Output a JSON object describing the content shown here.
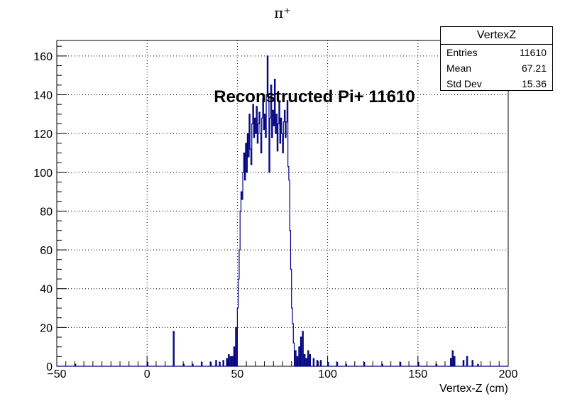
{
  "chart_data": {
    "type": "histogram",
    "title": "π⁺",
    "annotation": "Reconstructed Pi+ 11610",
    "xlabel": "Vertex-Z (cm)",
    "ylabel": "",
    "xlim": [
      -50,
      200
    ],
    "ylim": [
      0,
      168
    ],
    "x_ticks": [
      -50,
      0,
      50,
      100,
      150,
      200
    ],
    "y_ticks": [
      0,
      20,
      40,
      60,
      80,
      100,
      120,
      140,
      160
    ],
    "grid": true,
    "bin_width": 0.5,
    "line_color": "#000080",
    "stats": {
      "name": "VertexZ",
      "rows": [
        {
          "label": "Entries",
          "value": "11610"
        },
        {
          "label": "Mean",
          "value": "67.21"
        },
        {
          "label": "Std Dev",
          "value": "15.36"
        }
      ]
    },
    "bins": [
      [
        -40,
        1
      ],
      [
        0,
        2
      ],
      [
        14.5,
        18
      ],
      [
        20,
        1
      ],
      [
        25,
        1
      ],
      [
        30,
        2
      ],
      [
        35,
        2
      ],
      [
        38,
        3
      ],
      [
        40,
        2
      ],
      [
        42,
        3
      ],
      [
        44,
        4
      ],
      [
        45,
        6
      ],
      [
        46,
        5
      ],
      [
        47,
        5
      ],
      [
        48,
        10
      ],
      [
        49,
        20
      ],
      [
        50,
        30
      ],
      [
        50.5,
        45
      ],
      [
        51,
        60
      ],
      [
        51.5,
        80
      ],
      [
        52,
        90
      ],
      [
        52.5,
        86
      ],
      [
        53,
        100
      ],
      [
        53.5,
        110
      ],
      [
        54,
        96
      ],
      [
        54.5,
        115
      ],
      [
        55,
        100
      ],
      [
        55.5,
        120
      ],
      [
        56,
        108
      ],
      [
        56.5,
        130
      ],
      [
        57,
        112
      ],
      [
        57.5,
        104
      ],
      [
        58,
        125
      ],
      [
        58.5,
        135
      ],
      [
        59,
        118
      ],
      [
        59.5,
        128
      ],
      [
        60,
        120
      ],
      [
        60.5,
        134
      ],
      [
        61,
        115
      ],
      [
        61.5,
        125
      ],
      [
        62,
        131
      ],
      [
        62.5,
        120
      ],
      [
        63,
        110
      ],
      [
        63.5,
        128
      ],
      [
        64,
        138
      ],
      [
        64.5,
        122
      ],
      [
        65,
        130
      ],
      [
        65.5,
        118
      ],
      [
        66,
        140
      ],
      [
        66.5,
        160
      ],
      [
        67,
        138
      ],
      [
        67.5,
        100
      ],
      [
        68,
        128
      ],
      [
        68.5,
        145
      ],
      [
        69,
        118
      ],
      [
        69.5,
        132
      ],
      [
        70,
        124
      ],
      [
        70.5,
        148
      ],
      [
        71,
        120
      ],
      [
        71.5,
        130
      ],
      [
        72,
        111
      ],
      [
        72.5,
        125
      ],
      [
        73,
        136
      ],
      [
        73.5,
        115
      ],
      [
        74,
        128
      ],
      [
        74.5,
        120
      ],
      [
        75,
        110
      ],
      [
        75.5,
        126
      ],
      [
        76,
        132
      ],
      [
        76.5,
        118
      ],
      [
        77,
        126
      ],
      [
        77.5,
        137
      ],
      [
        78,
        103
      ],
      [
        78.5,
        96
      ],
      [
        79,
        70
      ],
      [
        79.5,
        50
      ],
      [
        80,
        30
      ],
      [
        80.5,
        22
      ],
      [
        81,
        12
      ],
      [
        82,
        8
      ],
      [
        83,
        5
      ],
      [
        84,
        10
      ],
      [
        85,
        15
      ],
      [
        86,
        18
      ],
      [
        87,
        6
      ],
      [
        88,
        4
      ],
      [
        89,
        8
      ],
      [
        90,
        6
      ],
      [
        92,
        4
      ],
      [
        94,
        3
      ],
      [
        96,
        3
      ],
      [
        100,
        2
      ],
      [
        105,
        2
      ],
      [
        110,
        1
      ],
      [
        120,
        2
      ],
      [
        130,
        1
      ],
      [
        140,
        2
      ],
      [
        150,
        2
      ],
      [
        160,
        1
      ],
      [
        168,
        4
      ],
      [
        169,
        8
      ],
      [
        170,
        5
      ],
      [
        175,
        3
      ],
      [
        177,
        5
      ],
      [
        180,
        3
      ],
      [
        183,
        1
      ]
    ]
  }
}
